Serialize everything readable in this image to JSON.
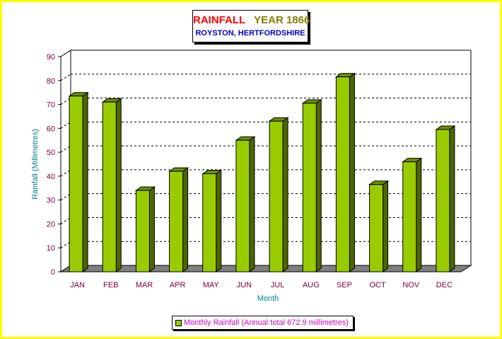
{
  "chart_data": {
    "type": "bar",
    "title_part1": "RAINFALL",
    "title_part2": "YEAR 1866",
    "subtitle": "ROYSTON, HERTFORDSHIRE",
    "xlabel": "Month",
    "ylabel": "Rainfall (Millimetres)",
    "categories": [
      "JAN",
      "FEB",
      "MAR",
      "APR",
      "MAY",
      "JUN",
      "JUL",
      "AUG",
      "SEP",
      "OCT",
      "NOV",
      "DEC"
    ],
    "series": [
      {
        "name": "Monthly Rainfall (Annual total 672.9 millimetres)",
        "values": [
          73.5,
          71,
          34,
          42,
          41,
          55,
          63,
          70.5,
          81.5,
          36.5,
          46,
          59.5
        ]
      }
    ],
    "ylim": [
      0,
      90
    ],
    "yticks": [
      "0",
      "10",
      "20",
      "30",
      "40",
      "50",
      "60",
      "70",
      "80",
      "90"
    ],
    "grid": true,
    "legend_position": "bottom",
    "colors": {
      "bar_front": "#99cc00",
      "bar_side": "#4d6600",
      "bar_top": "#6b8e00",
      "floor": "#808080",
      "title_red": "#ff0000",
      "title_olive": "#808000",
      "subtitle_blue": "#0000cc",
      "axis_text": "#800040",
      "label_teal": "#008080",
      "legend_text": "#cc00cc",
      "frame": "#ffff00"
    }
  }
}
